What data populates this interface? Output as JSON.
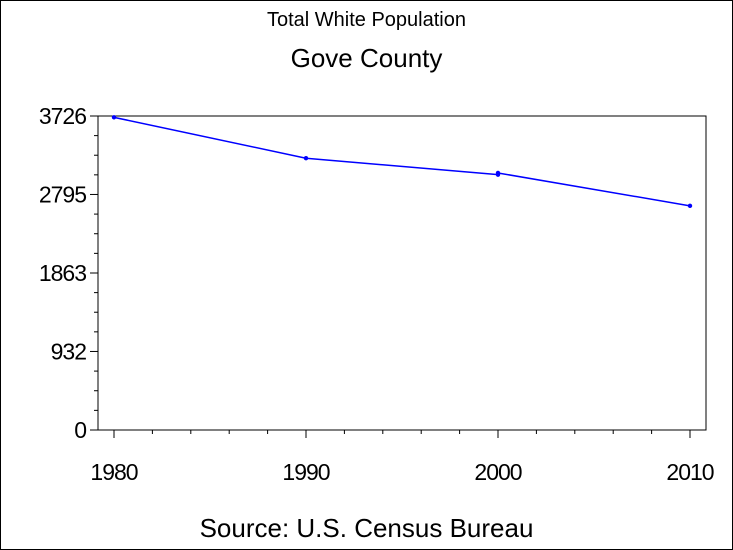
{
  "chart_data": {
    "type": "line",
    "title": "Total White Population",
    "subtitle": "Gove County",
    "footnote": "Source: U.S. Census Bureau",
    "xlabel": "",
    "ylabel": "",
    "x": [
      1980,
      1990,
      2000,
      2000,
      2010
    ],
    "series": [
      {
        "values": [
          3710,
          3225,
          3030,
          3050,
          2660
        ]
      }
    ],
    "xlim": [
      1980,
      2010
    ],
    "ylim": [
      0,
      3726
    ],
    "x_ticks": [
      "1980",
      "1990",
      "2000",
      "2010"
    ],
    "y_ticks": [
      "0",
      "932",
      "1863",
      "2795",
      "3726"
    ],
    "y_tick_values": [
      0,
      932,
      1863,
      2795,
      3726
    ],
    "grid": false,
    "legend": "none",
    "colors": {
      "line": "#0000ff",
      "axis": "#000000",
      "background": "#ffffff"
    }
  }
}
